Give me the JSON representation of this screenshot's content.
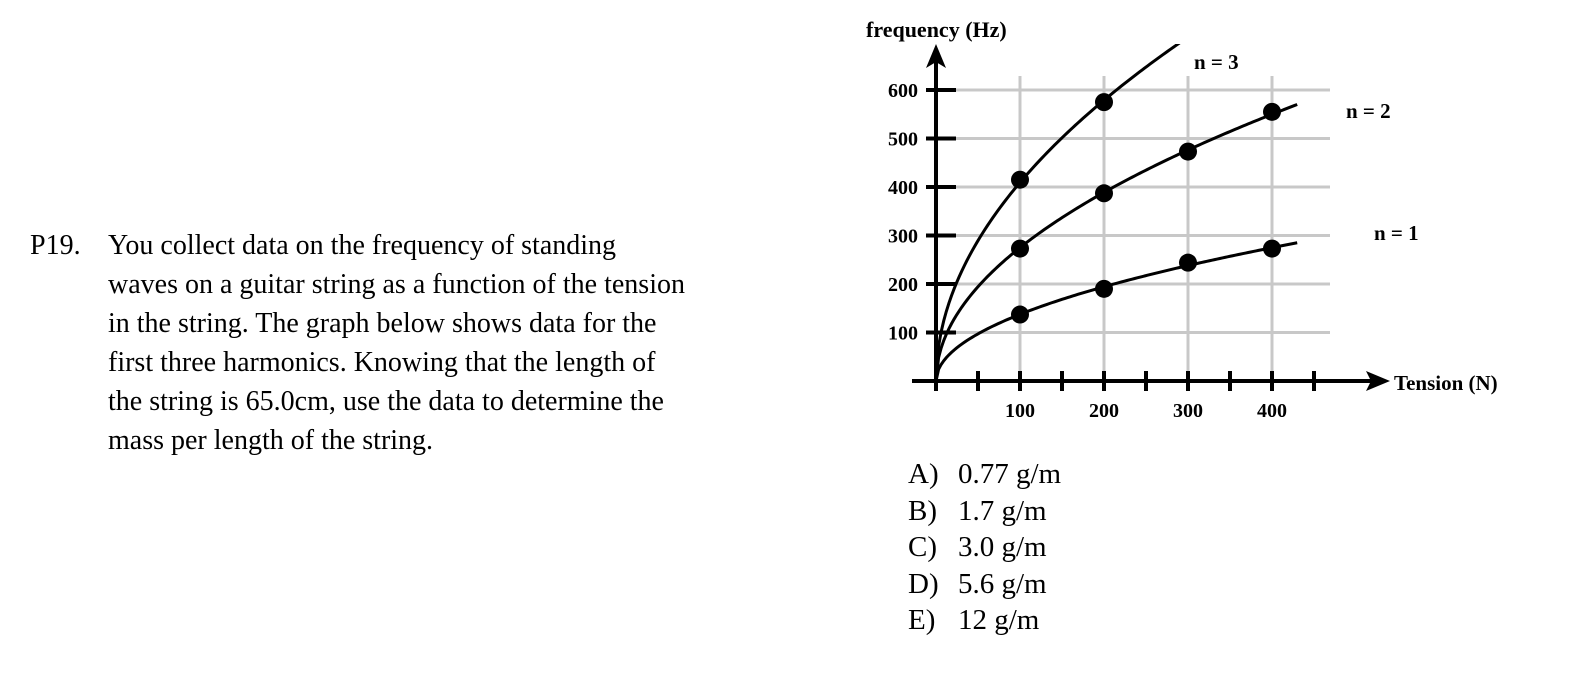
{
  "problem": {
    "number": "P19.",
    "lines": [
      "You collect data on the frequency of standing",
      "waves on a guitar string as a function of the tension",
      "in the string.  The graph below shows data for the",
      "first three harmonics.  Knowing that the length of",
      "the string is 65.0cm, use the data to determine the",
      "mass per length of the string."
    ]
  },
  "choices": [
    {
      "letter": "A)",
      "text": "0.77 g/m"
    },
    {
      "letter": "B)",
      "text": "1.7 g/m"
    },
    {
      "letter": "C)",
      "text": "3.0 g/m"
    },
    {
      "letter": "D)",
      "text": "5.6 g/m"
    },
    {
      "letter": "E)",
      "text": "12 g/m"
    }
  ],
  "chart_data": {
    "type": "scatter",
    "title": "",
    "xlabel": "Tension (N)",
    "ylabel": "frequency (Hz)",
    "xlim": [
      0,
      400
    ],
    "ylim": [
      0,
      600
    ],
    "x_ticks": [
      100,
      200,
      300,
      400
    ],
    "y_ticks": [
      100,
      200,
      300,
      400,
      500,
      600
    ],
    "grid": true,
    "fit_curves": "square-root",
    "series": [
      {
        "name": "n = 1",
        "x": [
          100,
          200,
          300,
          400
        ],
        "y": [
          137,
          190,
          244,
          273
        ]
      },
      {
        "name": "n = 2",
        "x": [
          100,
          200,
          300,
          400
        ],
        "y": [
          273,
          387,
          473,
          555
        ]
      },
      {
        "name": "n = 3",
        "x": [
          100,
          200
        ],
        "y": [
          415,
          575
        ]
      }
    ],
    "colors": {
      "axis": "#000000",
      "grid": "#c8c8c8",
      "marker": "#000000"
    }
  }
}
